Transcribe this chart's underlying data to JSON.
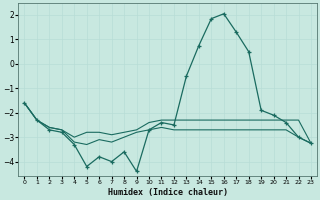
{
  "xlabel": "Humidex (Indice chaleur)",
  "background_color": "#c8e8e0",
  "line_color": "#1a6b60",
  "grid_color": "#b8ddd6",
  "xlim": [
    -0.5,
    23.5
  ],
  "ylim": [
    -4.6,
    2.5
  ],
  "yticks": [
    -4,
    -3,
    -2,
    -1,
    0,
    1,
    2
  ],
  "xticks": [
    0,
    1,
    2,
    3,
    4,
    5,
    6,
    7,
    8,
    9,
    10,
    11,
    12,
    13,
    14,
    15,
    16,
    17,
    18,
    19,
    20,
    21,
    22,
    23
  ],
  "line1_x": [
    0,
    1,
    2,
    3,
    4,
    5,
    6,
    7,
    8,
    9,
    10,
    11,
    12,
    13,
    14,
    15,
    16,
    17,
    18,
    19,
    20,
    21,
    22,
    23
  ],
  "line1_y": [
    -1.6,
    -2.3,
    -2.7,
    -2.8,
    -3.3,
    -4.2,
    -3.8,
    -4.0,
    -3.6,
    -4.4,
    -2.7,
    -2.4,
    -2.5,
    -0.5,
    0.75,
    1.85,
    2.05,
    1.3,
    0.5,
    -1.9,
    -2.1,
    -2.4,
    -3.0,
    -3.25
  ],
  "line2_x": [
    0,
    1,
    2,
    3,
    4,
    5,
    6,
    7,
    8,
    9,
    10,
    11,
    12,
    13,
    14,
    15,
    16,
    17,
    18,
    19,
    20,
    21,
    22,
    23
  ],
  "line2_y": [
    -1.6,
    -2.3,
    -2.6,
    -2.7,
    -3.0,
    -2.8,
    -2.8,
    -2.9,
    -2.8,
    -2.7,
    -2.4,
    -2.3,
    -2.3,
    -2.3,
    -2.3,
    -2.3,
    -2.3,
    -2.3,
    -2.3,
    -2.3,
    -2.3,
    -2.3,
    -2.3,
    -3.25
  ],
  "line3_x": [
    0,
    1,
    2,
    3,
    4,
    5,
    6,
    7,
    8,
    9,
    10,
    11,
    12,
    13,
    14,
    15,
    16,
    17,
    18,
    19,
    20,
    21,
    22,
    23
  ],
  "line3_y": [
    -1.6,
    -2.3,
    -2.6,
    -2.7,
    -3.2,
    -3.3,
    -3.1,
    -3.2,
    -3.0,
    -2.8,
    -2.7,
    -2.6,
    -2.7,
    -2.7,
    -2.7,
    -2.7,
    -2.7,
    -2.7,
    -2.7,
    -2.7,
    -2.7,
    -2.7,
    -3.0,
    -3.25
  ]
}
